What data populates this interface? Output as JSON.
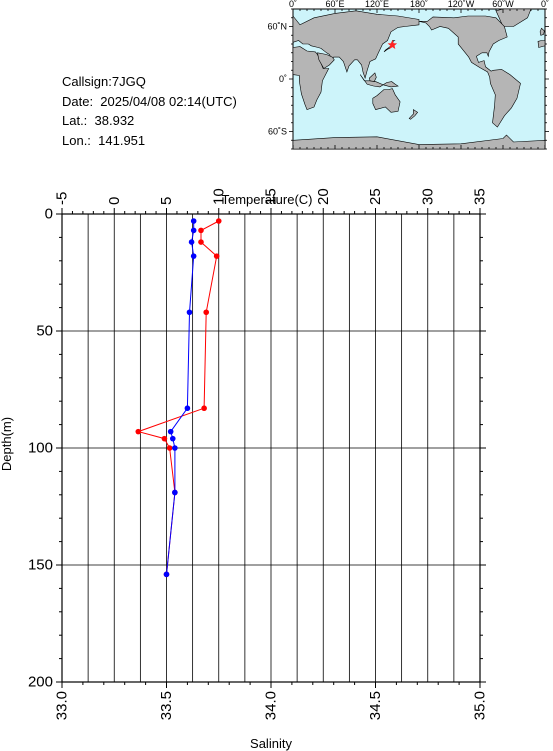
{
  "info": {
    "callsign": "Callsign:7JGQ",
    "date": "Date:  2025/04/08 02:14(UTC)",
    "lat": "Lat.:  38.932",
    "lon": "Lon.:  141.951"
  },
  "map": {
    "lon_labels": [
      "0˚",
      "60˚E",
      "120˚E",
      "180˚",
      "120˚W",
      "60˚W",
      "0˚"
    ],
    "lat_labels": [
      "60˚N",
      "0˚",
      "60˚S"
    ],
    "ocean_color": "#cdf4fa",
    "land_color": "#b5b5b5",
    "marker_color": "#ff2222",
    "station": {
      "lat": 38.932,
      "lon": 141.951
    }
  },
  "chart_data": {
    "type": "line",
    "ylabel": "Depth(m)",
    "y_reversed": true,
    "ylim": [
      0,
      200
    ],
    "y_ticks": [
      "0",
      "50",
      "100",
      "150",
      "200"
    ],
    "top_axis": {
      "label": "Temperature(C)",
      "lim": [
        -5,
        35
      ],
      "ticks": [
        "-5",
        "0",
        "5",
        "10",
        "15",
        "20",
        "25",
        "30",
        "35"
      ]
    },
    "bottom_axis": {
      "label": "Salinity",
      "lim": [
        33.0,
        35.0
      ],
      "ticks": [
        "33.0",
        "33.5",
        "34.0",
        "34.5",
        "35.0"
      ]
    },
    "grid": true,
    "series": [
      {
        "axis": "top",
        "color": "#ff0000",
        "points": [
          {
            "x": 10.0,
            "y": 3
          },
          {
            "x": 8.3,
            "y": 7
          },
          {
            "x": 8.3,
            "y": 12
          },
          {
            "x": 9.8,
            "y": 18
          },
          {
            "x": 8.8,
            "y": 42
          },
          {
            "x": 8.6,
            "y": 83
          },
          {
            "x": 2.3,
            "y": 93
          },
          {
            "x": 4.8,
            "y": 96
          },
          {
            "x": 5.3,
            "y": 100
          },
          {
            "x": 5.8,
            "y": 119
          },
          {
            "x": 5.0,
            "y": 154
          }
        ]
      },
      {
        "axis": "bottom",
        "color": "#0000ff",
        "points": [
          {
            "x": 33.63,
            "y": 3
          },
          {
            "x": 33.63,
            "y": 7
          },
          {
            "x": 33.62,
            "y": 12
          },
          {
            "x": 33.63,
            "y": 18
          },
          {
            "x": 33.61,
            "y": 42
          },
          {
            "x": 33.6,
            "y": 83
          },
          {
            "x": 33.52,
            "y": 93
          },
          {
            "x": 33.53,
            "y": 96
          },
          {
            "x": 33.54,
            "y": 100
          },
          {
            "x": 33.54,
            "y": 119
          },
          {
            "x": 33.5,
            "y": 154
          }
        ]
      }
    ]
  }
}
